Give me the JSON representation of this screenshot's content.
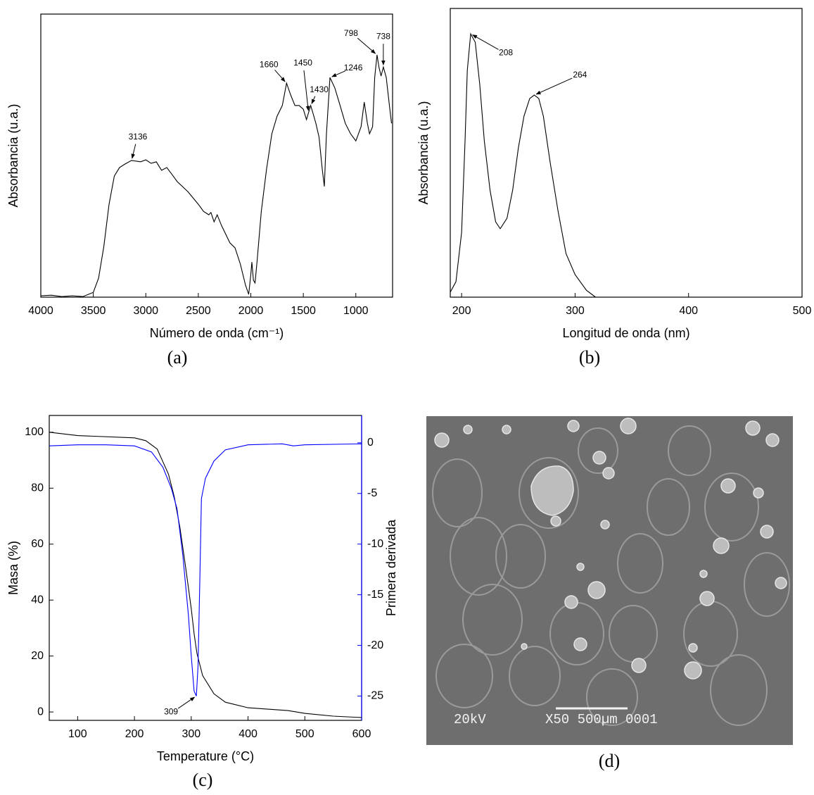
{
  "chart_data": [
    {
      "type": "line",
      "caption": "(a)",
      "xlabel": "Número de onda (cm⁻¹)",
      "ylabel": "Absorbancia (u.a.)",
      "xlim": [
        4000,
        650
      ],
      "ylim": [
        0,
        100
      ],
      "xticks": [
        4000,
        3500,
        3000,
        2500,
        2000,
        1500,
        1000
      ],
      "series": [
        {
          "color": "#000000",
          "x": [
            4000,
            3900,
            3800,
            3700,
            3600,
            3500,
            3450,
            3400,
            3350,
            3300,
            3250,
            3200,
            3136,
            3050,
            3000,
            2950,
            2900,
            2850,
            2800,
            2750,
            2700,
            2600,
            2500,
            2450,
            2400,
            2380,
            2350,
            2320,
            2280,
            2200,
            2150,
            2100,
            2050,
            2020,
            2000,
            1990,
            1975,
            1960,
            1940,
            1900,
            1850,
            1800,
            1750,
            1700,
            1660,
            1620,
            1580,
            1540,
            1500,
            1470,
            1450,
            1430,
            1410,
            1380,
            1350,
            1320,
            1300,
            1280,
            1246,
            1200,
            1150,
            1100,
            1050,
            1000,
            950,
            920,
            890,
            870,
            840,
            820,
            798,
            780,
            760,
            738,
            710,
            680,
            660
          ],
          "values": [
            0.5,
            0.7,
            0.2,
            0.5,
            0.2,
            1.7,
            6.7,
            17.9,
            32.8,
            42.8,
            45.8,
            47.0,
            48.3,
            47.8,
            48.5,
            47.3,
            47.8,
            44.8,
            45.8,
            43.3,
            40.8,
            37.3,
            32.8,
            30.3,
            29.1,
            29.9,
            26.6,
            29.1,
            25.4,
            19.2,
            17.4,
            11.7,
            4.2,
            1.0,
            8.0,
            12.4,
            6.0,
            5.0,
            12.9,
            30.3,
            45.3,
            57.7,
            63.9,
            67.7,
            75.6,
            71.4,
            67.7,
            67.7,
            66.4,
            62.7,
            65.2,
            67.7,
            65.2,
            61.4,
            56.5,
            45.3,
            39.1,
            57.7,
            77.6,
            73.9,
            67.7,
            61.4,
            57.7,
            55.2,
            60.2,
            68.9,
            61.4,
            57.7,
            60.2,
            77.6,
            85.6,
            81.3,
            78.1,
            81.3,
            77.6,
            67.7,
            61.4
          ]
        }
      ],
      "annotations": [
        {
          "text": "3136",
          "x": 3136
        },
        {
          "text": "1660",
          "x": 1660
        },
        {
          "text": "1450",
          "x": 1450
        },
        {
          "text": "1430",
          "x": 1430
        },
        {
          "text": "1246",
          "x": 1246
        },
        {
          "text": "798",
          "x": 798
        },
        {
          "text": "738",
          "x": 738
        }
      ]
    },
    {
      "type": "line",
      "caption": "(b)",
      "xlabel": "Longitud de onda (nm)",
      "ylabel": "Absorbancia (u.a.)",
      "xlim": [
        190,
        500
      ],
      "ylim": [
        0,
        100
      ],
      "xticks": [
        200,
        300,
        400,
        500
      ],
      "series": [
        {
          "color": "#000000",
          "x": [
            190,
            195,
            200,
            203,
            205,
            208,
            212,
            216,
            220,
            225,
            230,
            234,
            240,
            245,
            250,
            255,
            260,
            264,
            268,
            272,
            278,
            285,
            292,
            300,
            310,
            318
          ],
          "values": [
            1.7,
            5.4,
            22.4,
            54.1,
            78.5,
            91.2,
            88.3,
            73.7,
            54.1,
            37.1,
            26.1,
            23.7,
            27.3,
            37.1,
            51.7,
            62.7,
            68.8,
            70.0,
            68.8,
            62.7,
            46.8,
            29.8,
            15.1,
            7.8,
            2.4,
            0
          ]
        }
      ],
      "annotations": [
        {
          "text": "208",
          "x": 208
        },
        {
          "text": "264",
          "x": 264
        }
      ]
    },
    {
      "type": "line",
      "caption": "(c)",
      "xlabel": "Temperature (°C)",
      "ylabel": "Masa (%)",
      "y2label": "Primera derivada",
      "xlim": [
        50,
        600
      ],
      "ylim": [
        -3,
        106
      ],
      "y2lim": [
        -27.4,
        2.7
      ],
      "xticks": [
        100,
        200,
        300,
        400,
        500,
        600
      ],
      "yticks": [
        0,
        20,
        40,
        60,
        80,
        100
      ],
      "y2ticks": [
        0,
        -5,
        -10,
        -15,
        -20,
        -25
      ],
      "series": [
        {
          "color": "#000000",
          "x": [
            50,
            100,
            200,
            220,
            240,
            260,
            270,
            280,
            290,
            300,
            305,
            310,
            320,
            340,
            360,
            400,
            450,
            470,
            500,
            550,
            600
          ],
          "values": [
            100,
            98.8,
            98,
            97,
            94,
            85,
            77,
            66,
            52,
            37,
            28,
            21,
            13,
            6.5,
            3.5,
            1.5,
            0.8,
            0.5,
            -0.5,
            -1.5,
            -2
          ]
        },
        {
          "color": "#0000ff",
          "axis": "y2",
          "x": [
            50,
            100,
            150,
            200,
            230,
            250,
            265,
            275,
            285,
            295,
            300,
            305,
            309,
            312,
            315,
            318,
            325,
            340,
            360,
            400,
            460,
            480,
            500,
            600
          ],
          "values": [
            -0.3,
            -0.2,
            -0.2,
            -0.3,
            -0.9,
            -2.4,
            -4.5,
            -6.5,
            -11,
            -17,
            -21,
            -24.5,
            -25,
            -22,
            -14,
            -5.5,
            -3.5,
            -1.8,
            -0.7,
            -0.2,
            -0.1,
            -0.3,
            -0.2,
            -0.1
          ]
        }
      ],
      "annotations": [
        {
          "text": "309",
          "x": 309,
          "axis": "y2"
        }
      ]
    }
  ],
  "sem_image": {
    "caption": "(d)",
    "labels": [
      "20kV",
      "X50 500µm 0001"
    ]
  }
}
